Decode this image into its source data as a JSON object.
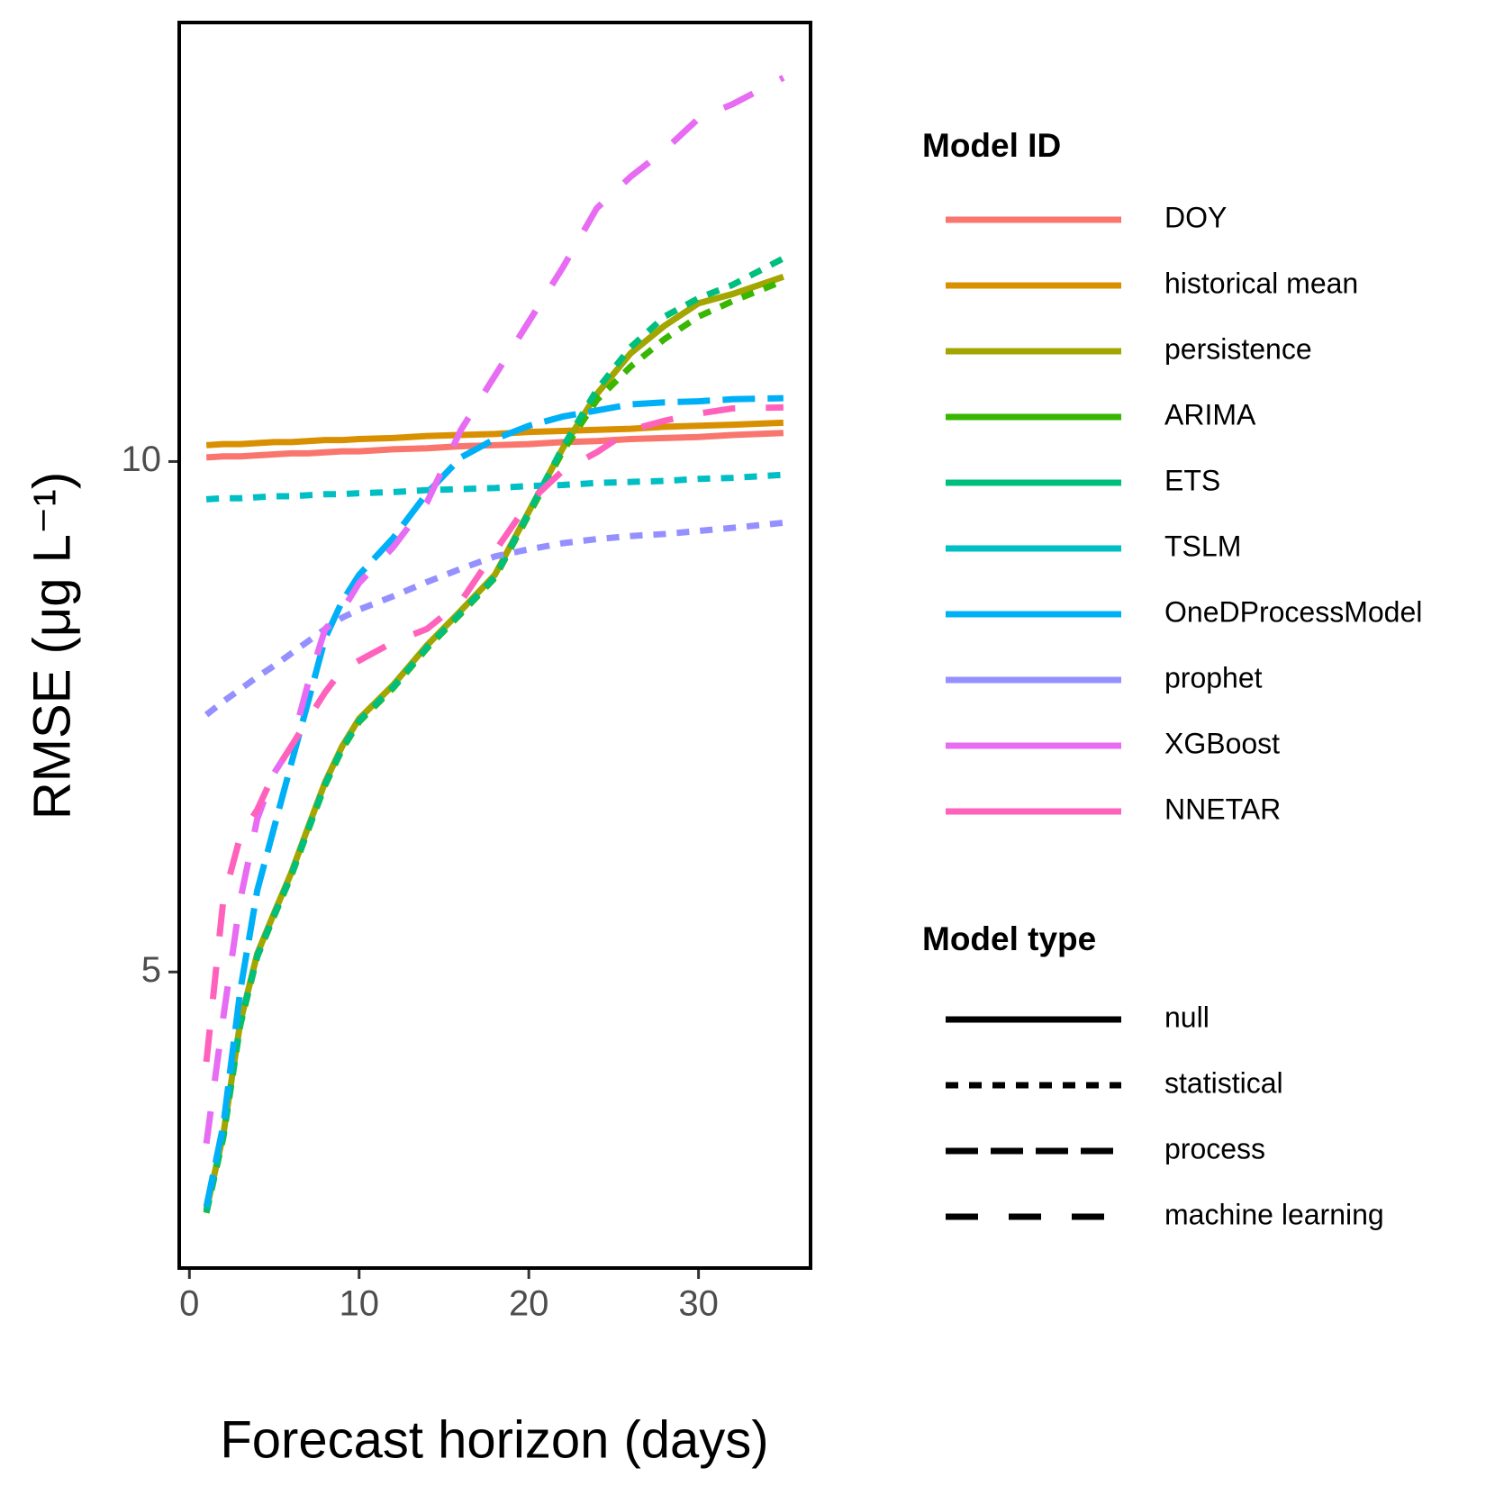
{
  "chart_data": {
    "type": "line",
    "x_label": "Forecast horizon (days)",
    "y_label": "RMSE (μg L⁻¹)",
    "xlim": [
      -0.6,
      36.6
    ],
    "ylim": [
      2.1,
      14.3
    ],
    "xticks": [
      0,
      10,
      20,
      30
    ],
    "yticks": [
      5,
      10
    ],
    "grid": false,
    "x": [
      1,
      2,
      3,
      4,
      5,
      6,
      7,
      8,
      9,
      10,
      12,
      14,
      16,
      18,
      20,
      22,
      24,
      26,
      28,
      30,
      32,
      35
    ],
    "legend_title": "Model ID",
    "linetype_title": "Model type",
    "linetypes": [
      {
        "name": "null",
        "dash": "none"
      },
      {
        "name": "statistical",
        "dash": "14 12"
      },
      {
        "name": "process",
        "dash": "36 14"
      },
      {
        "name": "machine learning",
        "dash": "36 34"
      }
    ],
    "series": [
      {
        "name": "DOY",
        "color": "#F8766D",
        "linetype": "null",
        "values": [
          10.04,
          10.05,
          10.05,
          10.06,
          10.07,
          10.08,
          10.08,
          10.09,
          10.1,
          10.1,
          10.12,
          10.13,
          10.15,
          10.16,
          10.17,
          10.19,
          10.2,
          10.22,
          10.23,
          10.24,
          10.26,
          10.28
        ]
      },
      {
        "name": "historical mean",
        "color": "#D89000",
        "linetype": "null",
        "values": [
          10.16,
          10.17,
          10.17,
          10.18,
          10.19,
          10.19,
          10.2,
          10.21,
          10.21,
          10.22,
          10.23,
          10.25,
          10.26,
          10.27,
          10.29,
          10.3,
          10.31,
          10.32,
          10.34,
          10.35,
          10.36,
          10.38
        ]
      },
      {
        "name": "persistence",
        "color": "#A3A500",
        "linetype": "null",
        "values": [
          2.67,
          3.41,
          4.51,
          5.18,
          5.58,
          5.97,
          6.42,
          6.86,
          7.21,
          7.48,
          7.81,
          8.2,
          8.54,
          8.89,
          9.51,
          10.13,
          10.66,
          11.06,
          11.33,
          11.55,
          11.64,
          11.81
        ]
      },
      {
        "name": "ARIMA",
        "color": "#39B600",
        "linetype": "statistical",
        "values": [
          2.64,
          3.38,
          4.48,
          5.15,
          5.55,
          5.94,
          6.39,
          6.83,
          7.18,
          7.45,
          7.78,
          8.17,
          8.51,
          8.86,
          9.48,
          10.1,
          10.6,
          10.93,
          11.2,
          11.42,
          11.57,
          11.77
        ]
      },
      {
        "name": "ETS",
        "color": "#00BF7D",
        "linetype": "statistical",
        "values": [
          2.65,
          3.4,
          4.5,
          5.16,
          5.56,
          5.95,
          6.4,
          6.84,
          7.19,
          7.46,
          7.79,
          8.18,
          8.52,
          8.87,
          9.5,
          10.14,
          10.7,
          11.12,
          11.42,
          11.6,
          11.73,
          11.99
        ]
      },
      {
        "name": "TSLM",
        "color": "#00BFC4",
        "linetype": "statistical",
        "values": [
          9.63,
          9.64,
          9.64,
          9.65,
          9.66,
          9.66,
          9.67,
          9.68,
          9.68,
          9.69,
          9.7,
          9.72,
          9.73,
          9.74,
          9.76,
          9.77,
          9.79,
          9.8,
          9.81,
          9.83,
          9.84,
          9.87
        ]
      },
      {
        "name": "OneDProcessModel",
        "color": "#00B0F6",
        "linetype": "process",
        "values": [
          2.7,
          3.5,
          4.82,
          5.8,
          6.42,
          7.04,
          7.65,
          8.27,
          8.63,
          8.89,
          9.25,
          9.69,
          10.04,
          10.22,
          10.35,
          10.44,
          10.5,
          10.56,
          10.58,
          10.59,
          10.61,
          10.62
        ]
      },
      {
        "name": "prophet",
        "color": "#9590FF",
        "linetype": "statistical",
        "values": [
          7.52,
          7.65,
          7.77,
          7.89,
          8.0,
          8.12,
          8.24,
          8.36,
          8.47,
          8.55,
          8.68,
          8.82,
          8.95,
          9.07,
          9.14,
          9.2,
          9.24,
          9.27,
          9.29,
          9.32,
          9.35,
          9.4
        ]
      },
      {
        "name": "XGBoost",
        "color": "#E76BF3",
        "linetype": "machine learning",
        "values": [
          3.32,
          4.56,
          5.71,
          6.5,
          6.95,
          7.21,
          7.83,
          8.36,
          8.54,
          8.81,
          9.16,
          9.6,
          10.31,
          10.84,
          11.37,
          11.9,
          12.48,
          12.79,
          13.05,
          13.36,
          13.5,
          13.76
        ]
      },
      {
        "name": "NNETAR",
        "color": "#FF62BC",
        "linetype": "machine learning",
        "values": [
          4.12,
          5.71,
          6.33,
          6.59,
          6.95,
          7.21,
          7.48,
          7.74,
          7.96,
          8.05,
          8.23,
          8.36,
          8.63,
          9.12,
          9.6,
          9.91,
          10.09,
          10.31,
          10.4,
          10.47,
          10.52,
          10.53
        ]
      }
    ]
  }
}
